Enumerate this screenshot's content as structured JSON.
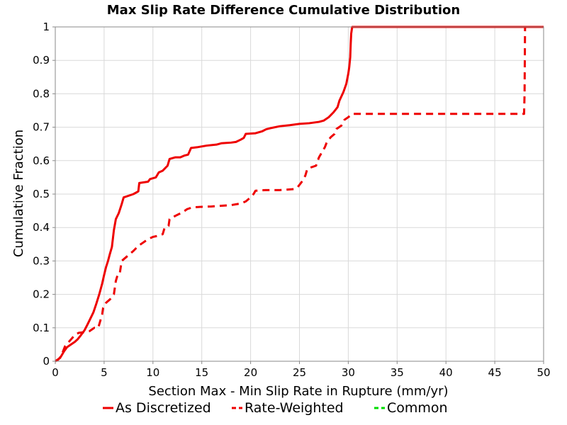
{
  "chart_data": {
    "type": "line",
    "title": "Max Slip Rate Difference Cumulative Distribution",
    "xlabel": "Section Max - Min Slip Rate in Rupture (mm/yr)",
    "ylabel": "Cumulative Fraction",
    "xlim": [
      0,
      50
    ],
    "ylim": [
      0,
      1
    ],
    "xticks": [
      "0",
      "5",
      "10",
      "15",
      "20",
      "25",
      "30",
      "35",
      "40",
      "45",
      "50"
    ],
    "yticks": [
      "0",
      "0.1",
      "0.2",
      "0.3",
      "0.4",
      "0.5",
      "0.6",
      "0.7",
      "0.8",
      "0.9",
      "1"
    ],
    "grid": true,
    "legend_position": "bottom",
    "series": [
      {
        "name": "As Discretized",
        "style": "solid",
        "color": "#ee0000",
        "points": [
          [
            0,
            0
          ],
          [
            0.3,
            0.005
          ],
          [
            0.6,
            0.015
          ],
          [
            0.9,
            0.03
          ],
          [
            1.2,
            0.042
          ],
          [
            1.6,
            0.05
          ],
          [
            2.0,
            0.058
          ],
          [
            2.3,
            0.066
          ],
          [
            2.6,
            0.077
          ],
          [
            3.0,
            0.093
          ],
          [
            3.3,
            0.11
          ],
          [
            3.6,
            0.128
          ],
          [
            3.9,
            0.146
          ],
          [
            4.2,
            0.172
          ],
          [
            4.5,
            0.2
          ],
          [
            4.8,
            0.232
          ],
          [
            5.0,
            0.258
          ],
          [
            5.2,
            0.282
          ],
          [
            5.4,
            0.3
          ],
          [
            5.6,
            0.322
          ],
          [
            5.8,
            0.342
          ],
          [
            6.0,
            0.392
          ],
          [
            6.2,
            0.425
          ],
          [
            6.5,
            0.443
          ],
          [
            6.8,
            0.47
          ],
          [
            7.0,
            0.49
          ],
          [
            7.5,
            0.495
          ],
          [
            8.0,
            0.5
          ],
          [
            8.5,
            0.508
          ],
          [
            8.6,
            0.533
          ],
          [
            9.5,
            0.537
          ],
          [
            9.7,
            0.545
          ],
          [
            10.3,
            0.55
          ],
          [
            10.6,
            0.565
          ],
          [
            11.0,
            0.57
          ],
          [
            11.5,
            0.585
          ],
          [
            11.7,
            0.605
          ],
          [
            12.3,
            0.61
          ],
          [
            12.8,
            0.61
          ],
          [
            13.2,
            0.615
          ],
          [
            13.6,
            0.618
          ],
          [
            13.9,
            0.638
          ],
          [
            14.5,
            0.64
          ],
          [
            15.5,
            0.645
          ],
          [
            16.5,
            0.648
          ],
          [
            17.0,
            0.652
          ],
          [
            18.0,
            0.654
          ],
          [
            18.5,
            0.656
          ],
          [
            19.0,
            0.663
          ],
          [
            19.3,
            0.668
          ],
          [
            19.5,
            0.68
          ],
          [
            20.5,
            0.682
          ],
          [
            21.2,
            0.688
          ],
          [
            21.6,
            0.694
          ],
          [
            22.0,
            0.697
          ],
          [
            23.0,
            0.703
          ],
          [
            24.0,
            0.706
          ],
          [
            25.0,
            0.71
          ],
          [
            26.0,
            0.712
          ],
          [
            27.0,
            0.716
          ],
          [
            27.5,
            0.72
          ],
          [
            28.0,
            0.73
          ],
          [
            28.5,
            0.745
          ],
          [
            28.9,
            0.76
          ],
          [
            29.1,
            0.78
          ],
          [
            29.5,
            0.805
          ],
          [
            29.8,
            0.83
          ],
          [
            30.0,
            0.86
          ],
          [
            30.1,
            0.88
          ],
          [
            30.2,
            0.91
          ],
          [
            30.25,
            0.95
          ],
          [
            30.3,
            0.98
          ],
          [
            30.4,
            1.0
          ],
          [
            50,
            1.0
          ]
        ]
      },
      {
        "name": "Rate-Weighted",
        "style": "dashed",
        "color": "#ee0000",
        "points": [
          [
            0,
            0
          ],
          [
            0.5,
            0.01
          ],
          [
            0.8,
            0.03
          ],
          [
            1.0,
            0.045
          ],
          [
            1.3,
            0.055
          ],
          [
            1.6,
            0.065
          ],
          [
            1.9,
            0.075
          ],
          [
            2.1,
            0.08
          ],
          [
            2.4,
            0.085
          ],
          [
            3.0,
            0.087
          ],
          [
            3.5,
            0.09
          ],
          [
            4.0,
            0.1
          ],
          [
            4.4,
            0.1
          ],
          [
            4.6,
            0.12
          ],
          [
            4.8,
            0.14
          ],
          [
            4.9,
            0.16
          ],
          [
            5.2,
            0.175
          ],
          [
            5.6,
            0.185
          ],
          [
            6.0,
            0.2
          ],
          [
            6.2,
            0.24
          ],
          [
            6.4,
            0.26
          ],
          [
            6.6,
            0.262
          ],
          [
            6.8,
            0.3
          ],
          [
            7.2,
            0.31
          ],
          [
            7.6,
            0.32
          ],
          [
            8.0,
            0.33
          ],
          [
            8.5,
            0.345
          ],
          [
            9.0,
            0.355
          ],
          [
            9.5,
            0.365
          ],
          [
            10.0,
            0.372
          ],
          [
            10.5,
            0.375
          ],
          [
            11.0,
            0.38
          ],
          [
            11.2,
            0.4
          ],
          [
            11.6,
            0.405
          ],
          [
            11.7,
            0.425
          ],
          [
            12.3,
            0.435
          ],
          [
            13.0,
            0.445
          ],
          [
            13.5,
            0.455
          ],
          [
            14.0,
            0.46
          ],
          [
            15.0,
            0.462
          ],
          [
            16.0,
            0.463
          ],
          [
            17.0,
            0.465
          ],
          [
            18.0,
            0.467
          ],
          [
            19.0,
            0.472
          ],
          [
            19.5,
            0.478
          ],
          [
            20.0,
            0.49
          ],
          [
            20.3,
            0.5
          ],
          [
            20.5,
            0.51
          ],
          [
            21.5,
            0.512
          ],
          [
            23.0,
            0.512
          ],
          [
            24.5,
            0.515
          ],
          [
            24.8,
            0.52
          ],
          [
            25.2,
            0.535
          ],
          [
            25.6,
            0.555
          ],
          [
            25.8,
            0.575
          ],
          [
            26.2,
            0.58
          ],
          [
            26.7,
            0.585
          ],
          [
            27.0,
            0.61
          ],
          [
            27.3,
            0.625
          ],
          [
            27.6,
            0.64
          ],
          [
            27.8,
            0.655
          ],
          [
            28.2,
            0.67
          ],
          [
            28.6,
            0.68
          ],
          [
            28.8,
            0.695
          ],
          [
            29.3,
            0.705
          ],
          [
            29.6,
            0.722
          ],
          [
            30.0,
            0.73
          ],
          [
            30.4,
            0.74
          ],
          [
            48.0,
            0.74
          ],
          [
            48.05,
            0.8
          ],
          [
            48.1,
            1.0
          ],
          [
            50,
            1.0
          ]
        ]
      },
      {
        "name": "Common",
        "style": "dashed",
        "color": "#00dd00",
        "points": []
      }
    ]
  }
}
